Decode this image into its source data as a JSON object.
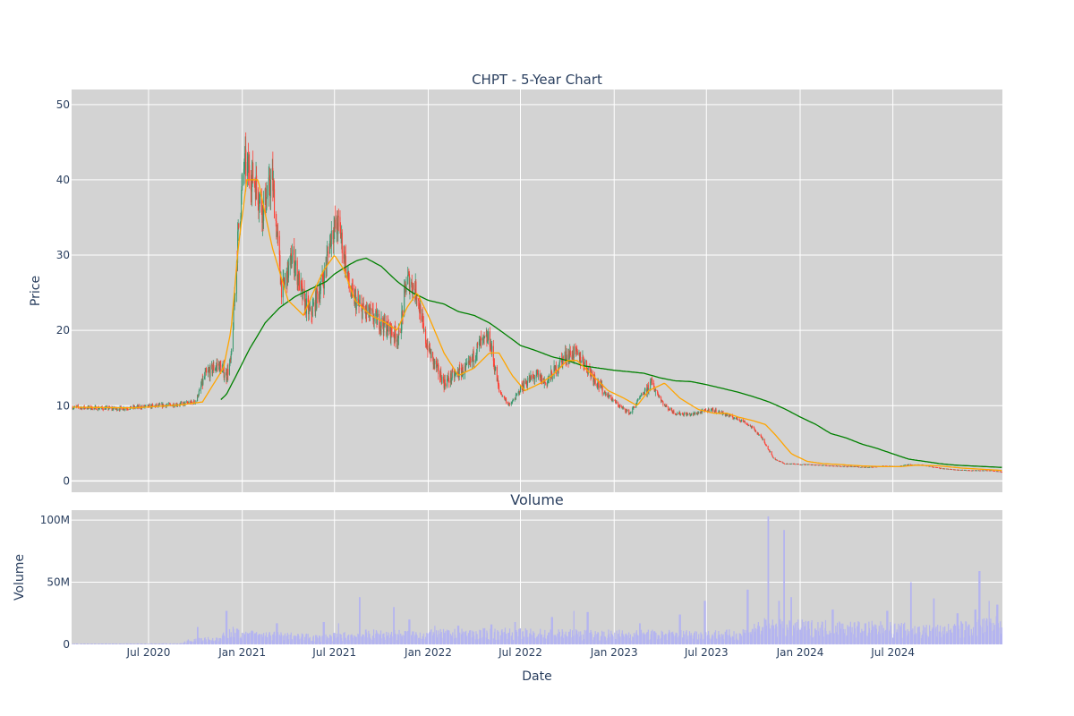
{
  "chart_data": [
    {
      "type": "candlestick",
      "title": "CHPT - 5-Year Chart",
      "ylabel": "Price",
      "ylim": [
        -1.5,
        52
      ],
      "yticks": [
        0,
        10,
        20,
        30,
        40,
        50
      ],
      "xlim": [
        "2020-02-01",
        "2025-02-01"
      ],
      "grid": true,
      "legend": "none",
      "colors": {
        "increasing": "#3d9970",
        "decreasing": "#ff4136",
        "ma_short": "#ffa500",
        "ma_long": "#008000",
        "background": "#d3d3d3"
      },
      "price_anchors": {
        "x": [
          "2020-02-03",
          "2020-05-01",
          "2020-07-01",
          "2020-09-01",
          "2020-10-01",
          "2020-10-20",
          "2020-11-15",
          "2020-12-01",
          "2020-12-10",
          "2020-12-24",
          "2021-01-05",
          "2021-01-25",
          "2021-02-10",
          "2021-03-01",
          "2021-03-20",
          "2021-04-10",
          "2021-05-01",
          "2021-05-15",
          "2021-06-10",
          "2021-06-25",
          "2021-07-10",
          "2021-08-01",
          "2021-08-20",
          "2021-09-10",
          "2021-10-01",
          "2021-11-05",
          "2021-11-20",
          "2021-12-10",
          "2021-12-25",
          "2022-01-10",
          "2022-02-01",
          "2022-02-20",
          "2022-03-20",
          "2022-04-10",
          "2022-05-01",
          "2022-05-20",
          "2022-06-10",
          "2022-07-10",
          "2022-08-01",
          "2022-08-20",
          "2022-09-10",
          "2022-09-25",
          "2022-10-15",
          "2022-11-01",
          "2022-11-20",
          "2022-12-10",
          "2023-01-10",
          "2023-02-01",
          "2023-02-20",
          "2023-03-15",
          "2023-04-10",
          "2023-05-01",
          "2023-06-01",
          "2023-07-10",
          "2023-08-01",
          "2023-08-20",
          "2023-09-10",
          "2023-10-01",
          "2023-10-20",
          "2023-11-10",
          "2023-12-01",
          "2024-01-10",
          "2024-02-10",
          "2024-03-10",
          "2024-04-15",
          "2024-05-15",
          "2024-06-15",
          "2024-07-10",
          "2024-08-01",
          "2024-09-01",
          "2024-10-01",
          "2024-11-01",
          "2024-12-01",
          "2025-01-10",
          "2025-01-31"
        ],
        "y": [
          9.8,
          9.6,
          9.9,
          10.2,
          10.5,
          14,
          15.5,
          14,
          16,
          33,
          42,
          40,
          36,
          40,
          25,
          30,
          24,
          22,
          27,
          33,
          34,
          25,
          23,
          22,
          21,
          19,
          27,
          25,
          19,
          16,
          13,
          14,
          15,
          18,
          19,
          12,
          10,
          13,
          14,
          13,
          15,
          16.5,
          17,
          16,
          14,
          12,
          10,
          9,
          11,
          13,
          10,
          9,
          8.8,
          9.5,
          9,
          8.5,
          8,
          7,
          5.5,
          3,
          2.3,
          2.2,
          2.1,
          2.0,
          1.9,
          1.8,
          2.0,
          1.9,
          2.2,
          2.1,
          1.7,
          1.5,
          1.4,
          1.4,
          1.2
        ]
      },
      "ma_short_anchors": {
        "x": [
          "2020-02-03",
          "2020-06-01",
          "2020-09-01",
          "2020-10-15",
          "2020-11-25",
          "2020-12-10",
          "2020-12-24",
          "2021-01-10",
          "2021-02-01",
          "2021-03-01",
          "2021-04-01",
          "2021-05-01",
          "2021-05-20",
          "2021-06-10",
          "2021-07-01",
          "2021-07-20",
          "2021-08-10",
          "2021-09-10",
          "2021-10-10",
          "2021-11-01",
          "2021-11-20",
          "2021-12-10",
          "2022-01-01",
          "2022-02-01",
          "2022-03-01",
          "2022-04-01",
          "2022-05-01",
          "2022-05-20",
          "2022-06-15",
          "2022-07-10",
          "2022-08-10",
          "2022-09-01",
          "2022-10-01",
          "2022-10-20",
          "2022-11-20",
          "2022-12-20",
          "2023-01-20",
          "2023-02-15",
          "2023-03-10",
          "2023-04-10",
          "2023-05-10",
          "2023-06-15",
          "2023-07-15",
          "2023-08-10",
          "2023-09-01",
          "2023-10-01",
          "2023-10-25",
          "2023-11-15",
          "2023-12-15",
          "2024-01-15",
          "2024-02-15",
          "2024-03-15",
          "2024-05-01",
          "2024-06-15",
          "2024-07-15",
          "2024-08-15",
          "2024-10-01",
          "2024-11-15",
          "2025-01-31"
        ],
        "y": [
          9.8,
          9.7,
          10.1,
          10.5,
          15,
          20,
          31,
          40,
          40,
          31,
          24,
          22,
          25,
          28,
          30,
          28,
          24,
          22,
          21,
          20,
          23,
          25,
          22,
          17,
          14,
          15,
          17,
          17,
          14,
          12,
          13,
          14,
          16,
          16,
          14,
          12,
          11,
          10,
          12,
          13,
          11,
          9.5,
          9,
          9,
          8.5,
          8.0,
          7.5,
          6,
          3.6,
          2.6,
          2.3,
          2.2,
          2.0,
          1.9,
          1.9,
          2.1,
          2.0,
          1.7,
          1.4
        ]
      },
      "ma_long_anchors": {
        "x": [
          "2020-11-20",
          "2020-12-01",
          "2020-12-20",
          "2021-01-15",
          "2021-02-15",
          "2021-03-15",
          "2021-04-15",
          "2021-05-15",
          "2021-06-15",
          "2021-07-01",
          "2021-08-01",
          "2021-08-15",
          "2021-09-01",
          "2021-10-01",
          "2021-11-01",
          "2021-12-01",
          "2022-01-01",
          "2022-02-01",
          "2022-03-01",
          "2022-04-01",
          "2022-05-01",
          "2022-06-01",
          "2022-07-01",
          "2022-08-01",
          "2022-09-01",
          "2022-10-01",
          "2022-11-01",
          "2022-12-01",
          "2023-01-01",
          "2023-02-01",
          "2023-03-01",
          "2023-04-01",
          "2023-05-01",
          "2023-06-01",
          "2023-07-01",
          "2023-08-01",
          "2023-09-01",
          "2023-10-01",
          "2023-11-01",
          "2023-12-01",
          "2024-01-01",
          "2024-02-01",
          "2024-03-01",
          "2024-04-01",
          "2024-05-01",
          "2024-06-01",
          "2024-07-01",
          "2024-08-01",
          "2024-09-01",
          "2024-10-01",
          "2024-11-01",
          "2024-12-01",
          "2025-01-31"
        ],
        "y": [
          10.8,
          11.5,
          14,
          17.5,
          21,
          23,
          24.5,
          25.5,
          26.5,
          27.5,
          28.8,
          29.3,
          29.6,
          28.5,
          26.5,
          25,
          24,
          23.5,
          22.5,
          22,
          21,
          19.5,
          18,
          17.3,
          16.5,
          16,
          15.3,
          15,
          14.7,
          14.5,
          14.3,
          13.7,
          13.3,
          13.2,
          12.8,
          12.3,
          11.8,
          11.2,
          10.5,
          9.6,
          8.5,
          7.5,
          6.3,
          5.7,
          4.9,
          4.3,
          3.6,
          2.9,
          2.6,
          2.3,
          2.1,
          2.0,
          1.8
        ]
      }
    },
    {
      "type": "bar",
      "title": "Volume",
      "xlabel": "Date",
      "ylabel": "Volume",
      "ylim": [
        0,
        108000000
      ],
      "yticks": [
        0,
        50000000,
        100000000
      ],
      "ytick_labels": [
        "0",
        "50M",
        "100M"
      ],
      "xlim": [
        "2020-02-01",
        "2025-02-01"
      ],
      "xticks": [
        "2020-07-01",
        "2021-01-01",
        "2021-07-01",
        "2022-01-01",
        "2022-07-01",
        "2023-01-01",
        "2023-07-01",
        "2024-01-01",
        "2024-07-01"
      ],
      "xtick_labels": [
        "Jul 2020",
        "Jan 2021",
        "Jul 2021",
        "Jan 2022",
        "Jul 2022",
        "Jan 2023",
        "Jul 2023",
        "Jan 2024",
        "Jul 2024"
      ],
      "grid": true,
      "colors": {
        "bar": "#b4b4f0",
        "background": "#d3d3d3"
      },
      "volume_anchors": {
        "x": [
          "2020-02-03",
          "2020-09-01",
          "2020-10-05",
          "2020-11-15",
          "2020-12-10",
          "2021-01-01",
          "2021-03-01",
          "2021-06-01",
          "2021-09-01",
          "2022-01-01",
          "2022-06-01",
          "2022-11-01",
          "2023-03-01",
          "2023-06-01",
          "2023-09-01",
          "2023-10-15",
          "2023-12-01",
          "2024-03-01",
          "2024-06-01",
          "2024-10-01",
          "2025-01-31"
        ],
        "y": [
          500000,
          700000,
          6000000,
          4000000,
          12000000,
          8000000,
          8000000,
          6000000,
          9000000,
          9000000,
          10000000,
          9000000,
          9000000,
          9000000,
          9000000,
          16000000,
          15000000,
          15000000,
          14000000,
          12000000,
          18000000
        ]
      },
      "volume_spikes": {
        "x": [
          "2020-10-05",
          "2020-12-01",
          "2021-01-20",
          "2021-03-10",
          "2021-06-10",
          "2021-07-10",
          "2021-08-20",
          "2021-10-25",
          "2021-11-25",
          "2022-01-15",
          "2022-03-01",
          "2022-05-05",
          "2022-06-20",
          "2022-09-01",
          "2022-10-15",
          "2022-11-10",
          "2023-02-20",
          "2023-05-10",
          "2023-06-28",
          "2023-09-20",
          "2023-10-30",
          "2023-11-20",
          "2023-12-01",
          "2023-12-15",
          "2024-03-05",
          "2024-06-20",
          "2024-08-05",
          "2024-09-20",
          "2024-11-05",
          "2024-12-10",
          "2024-12-18",
          "2025-01-05",
          "2025-01-22"
        ],
        "y": [
          14000000,
          27000000,
          11000000,
          17000000,
          18000000,
          17000000,
          38000000,
          30000000,
          20000000,
          15000000,
          15000000,
          16000000,
          18000000,
          22000000,
          27000000,
          26000000,
          17000000,
          24000000,
          35000000,
          44000000,
          103000000,
          35000000,
          92000000,
          38000000,
          28000000,
          27000000,
          50000000,
          37000000,
          25000000,
          28000000,
          59000000,
          35000000,
          32000000
        ]
      }
    }
  ]
}
